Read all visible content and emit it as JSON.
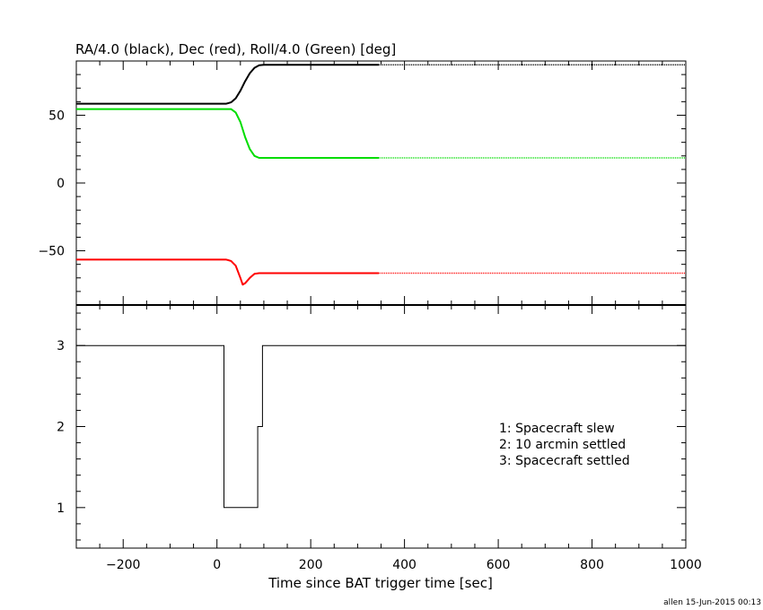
{
  "chart_data": [
    {
      "type": "line",
      "title": "RA/4.0 (black), Dec (red), Roll/4.0 (Green) [deg]",
      "xlim": [
        -300,
        1000
      ],
      "ylim": [
        -90,
        90
      ],
      "y_ticks": [
        -50,
        0,
        50
      ],
      "y_tick_labels": [
        "−50",
        "0",
        "50"
      ],
      "grid": false,
      "series": [
        {
          "color": "#000000",
          "x": [
            -300,
            20,
            30,
            40,
            50,
            60,
            70,
            80,
            90,
            100,
            345,
            1000
          ],
          "y": [
            58.5,
            58.5,
            59.5,
            62.5,
            68,
            75,
            81,
            85,
            86.8,
            87.2,
            87.2,
            87.2
          ],
          "dotted_after_x": 345
        },
        {
          "color": "#00dd00",
          "x": [
            -300,
            30,
            40,
            50,
            60,
            70,
            80,
            90,
            345,
            1000
          ],
          "y": [
            54.5,
            54.5,
            52,
            45,
            34,
            25,
            20,
            18.5,
            18.5,
            18.5
          ],
          "dotted_after_x": 345
        },
        {
          "color": "#ff0000",
          "x": [
            -300,
            20,
            30,
            40,
            50,
            55,
            60,
            70,
            80,
            90,
            345,
            1000
          ],
          "y": [
            -56.5,
            -56.5,
            -57.5,
            -61,
            -70,
            -75,
            -74,
            -70,
            -67,
            -66.5,
            -66.5,
            -66.5
          ],
          "dotted_after_x": 345
        }
      ]
    },
    {
      "type": "line",
      "xlabel": "Time since BAT trigger time [sec]",
      "xlim": [
        -300,
        1000
      ],
      "ylim": [
        0.5,
        3.5
      ],
      "x_ticks": [
        -200,
        0,
        200,
        400,
        600,
        800,
        1000
      ],
      "x_tick_labels": [
        "−200",
        "0",
        "200",
        "400",
        "600",
        "800",
        "1000"
      ],
      "y_ticks": [
        1,
        2,
        3
      ],
      "y_tick_labels": [
        "1",
        "2",
        "3"
      ],
      "grid": false,
      "series": [
        {
          "color": "#000000",
          "step": true,
          "x": [
            -300,
            15,
            15,
            87,
            87,
            97,
            97,
            1000
          ],
          "y": [
            3,
            3,
            1,
            1,
            2,
            2,
            3,
            3
          ]
        }
      ],
      "annotations": [
        "1: Spacecraft slew",
        "2: 10 arcmin settled",
        "3: Spacecraft settled"
      ]
    }
  ],
  "footer": "allen 15-Jun-2015 00:13"
}
